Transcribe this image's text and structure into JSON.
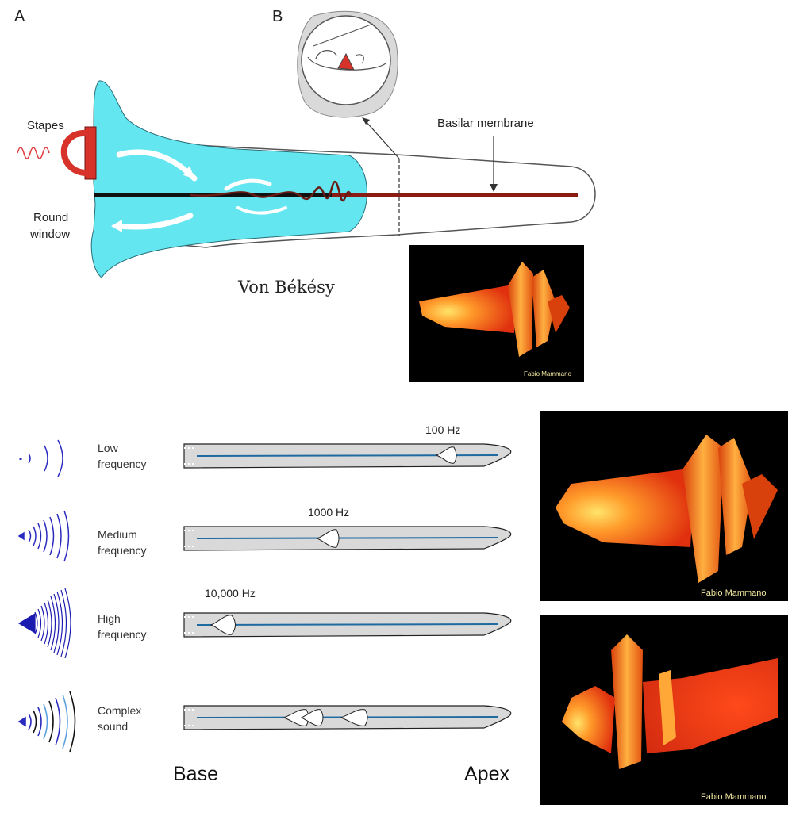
{
  "panel_a": {
    "letter": "A",
    "stapes_label": "Stapes",
    "round_window_label_line1": "Round",
    "round_window_label_line2": "window",
    "caption": "Von Békésy"
  },
  "panel_b": {
    "letter": "B",
    "basilar_label": "Basilar membrane"
  },
  "sim_credit": "Fabio Mammano",
  "frequency_rows": [
    {
      "label_line1": "Low",
      "label_line2": "frequency",
      "hz": "100 Hz"
    },
    {
      "label_line1": "Medium",
      "label_line2": "frequency",
      "hz": "1000 Hz"
    },
    {
      "label_line1": "High",
      "label_line2": "frequency",
      "hz": "10,000 Hz"
    },
    {
      "label_line1": "Complex",
      "label_line2": "sound",
      "hz": ""
    }
  ],
  "axis": {
    "base": "Base",
    "apex": "Apex"
  },
  "colors": {
    "fluid": "#63e6ef",
    "membrane": "#8a1c14",
    "stapes": "#d8332a",
    "wave": "#2b2bc0",
    "basilar_line": "#1f6aa0",
    "sim_bg": "#000000"
  }
}
